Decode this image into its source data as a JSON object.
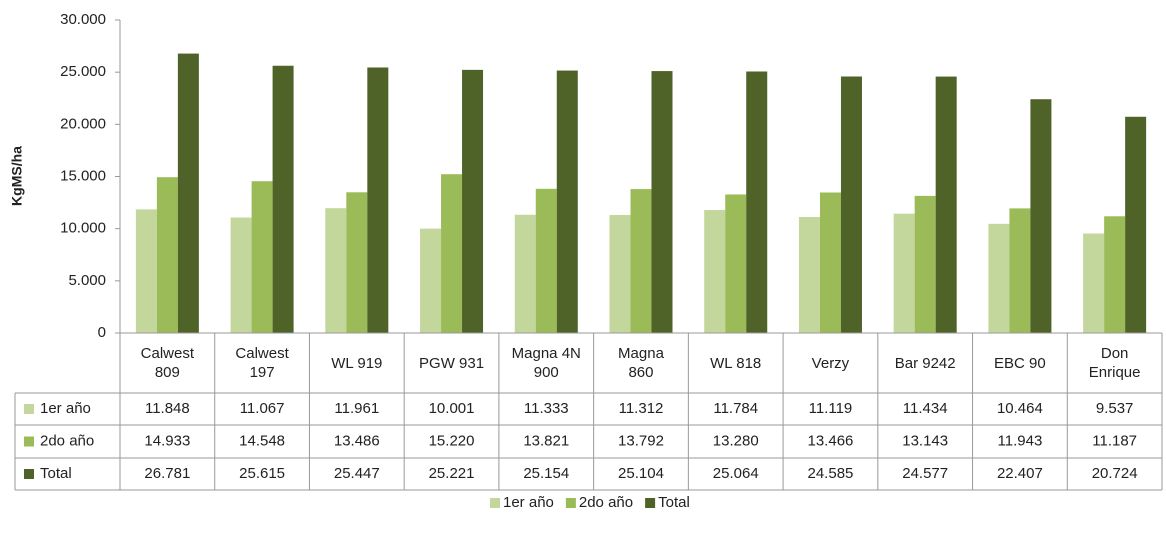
{
  "chart_data": {
    "type": "bar",
    "y_label": "KgMS/ha",
    "categories": [
      "Calwest 809",
      "Calwest 197",
      "WL 919",
      "PGW 931",
      "Magna 4N 900",
      "Magna 860",
      "WL 818",
      "Verzy",
      "Bar 9242",
      "EBC 90",
      "Don Enrique"
    ],
    "series": [
      {
        "name": "1er año",
        "color": "#c3d69b",
        "values": [
          11848,
          11067,
          11961,
          10001,
          11333,
          11312,
          11784,
          11119,
          11434,
          10464,
          9537
        ],
        "value_labels": [
          "11.848",
          "11.067",
          "11.961",
          "10.001",
          "11.333",
          "11.312",
          "11.784",
          "11.119",
          "11.434",
          "10.464",
          "9.537"
        ]
      },
      {
        "name": "2do año",
        "color": "#9bbb59",
        "values": [
          14933,
          14548,
          13486,
          15220,
          13821,
          13792,
          13280,
          13466,
          13143,
          11943,
          11187
        ],
        "value_labels": [
          "14.933",
          "14.548",
          "13.486",
          "15.220",
          "13.821",
          "13.792",
          "13.280",
          "13.466",
          "13.143",
          "11.943",
          "11.187"
        ]
      },
      {
        "name": "Total",
        "color": "#4f6228",
        "values": [
          26781,
          25615,
          25447,
          25221,
          25154,
          25104,
          25064,
          24585,
          24577,
          22407,
          20724
        ],
        "value_labels": [
          "26.781",
          "25.615",
          "25.447",
          "25.221",
          "25.154",
          "25.104",
          "25.064",
          "24.585",
          "24.577",
          "22.407",
          "20.724"
        ]
      }
    ],
    "ylim": [
      0,
      30000
    ],
    "yticks": [
      0,
      {
        "value": 5000,
        "label": "5.000"
      },
      {
        "value": 10000,
        "label": "10.000"
      },
      {
        "value": 15000,
        "label": "15.000"
      },
      {
        "value": 20000,
        "label": "20.000"
      },
      {
        "value": 25000,
        "label": "25.000"
      },
      {
        "value": 30000,
        "label": "30.000"
      }
    ],
    "grid": false,
    "legend": "bottom"
  }
}
